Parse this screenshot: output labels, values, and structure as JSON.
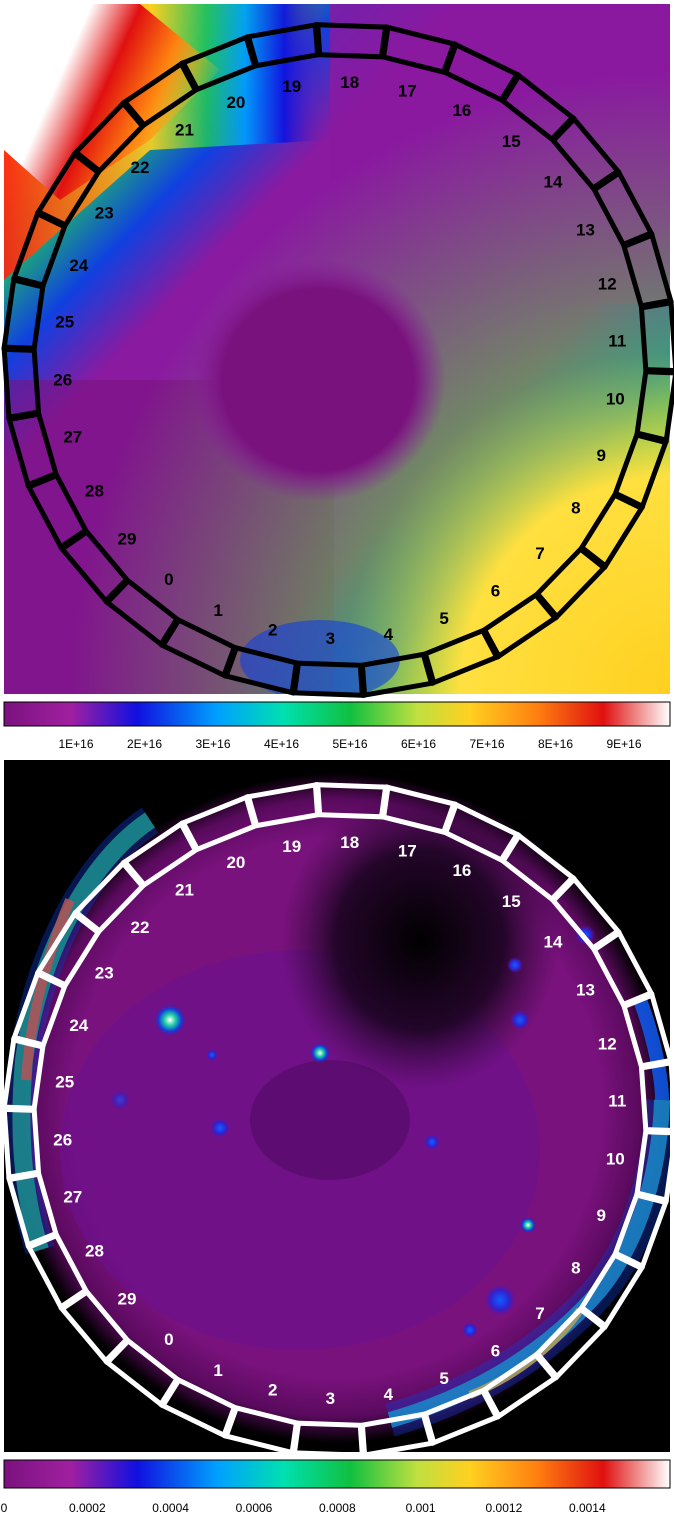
{
  "panels": [
    {
      "id": "top",
      "kind": "smooth-model-map",
      "box_color": "#000000",
      "label_color": "#000000",
      "region_labels": [
        "0",
        "1",
        "2",
        "3",
        "4",
        "5",
        "6",
        "7",
        "8",
        "9",
        "10",
        "11",
        "12",
        "13",
        "14",
        "15",
        "16",
        "17",
        "18",
        "19",
        "20",
        "21",
        "22",
        "23",
        "24",
        "25",
        "26",
        "27",
        "28",
        "29"
      ],
      "colorbar": {
        "colormap": [
          "#7a127e",
          "#a020a0",
          "#1010e0",
          "#00a0ff",
          "#00e0b0",
          "#10c040",
          "#c0e040",
          "#ffd020",
          "#ff8010",
          "#e01010",
          "#ffffff"
        ],
        "tick_labels": [
          "1E+16",
          "2E+16",
          "3E+16",
          "4E+16",
          "5E+16",
          "6E+16",
          "7E+16",
          "8E+16",
          "9E+16"
        ]
      }
    },
    {
      "id": "bottom",
      "kind": "observed-intensity-map",
      "box_color": "#ffffff",
      "label_color": "#ffffff",
      "region_labels": [
        "0",
        "1",
        "2",
        "3",
        "4",
        "5",
        "6",
        "7",
        "8",
        "9",
        "10",
        "11",
        "12",
        "13",
        "14",
        "15",
        "16",
        "17",
        "18",
        "19",
        "20",
        "21",
        "22",
        "23",
        "24",
        "25",
        "26",
        "27",
        "28",
        "29"
      ],
      "colorbar": {
        "colormap": [
          "#7a127e",
          "#a020a0",
          "#1010e0",
          "#00a0ff",
          "#00e0b0",
          "#10c040",
          "#c0e040",
          "#ffd020",
          "#ff8010",
          "#e01010",
          "#ffffff"
        ],
        "tick_labels": [
          "0",
          "0.0002",
          "0.0004",
          "0.0006",
          "0.0008",
          "0.001",
          "0.0012",
          "0.0014"
        ]
      }
    }
  ]
}
